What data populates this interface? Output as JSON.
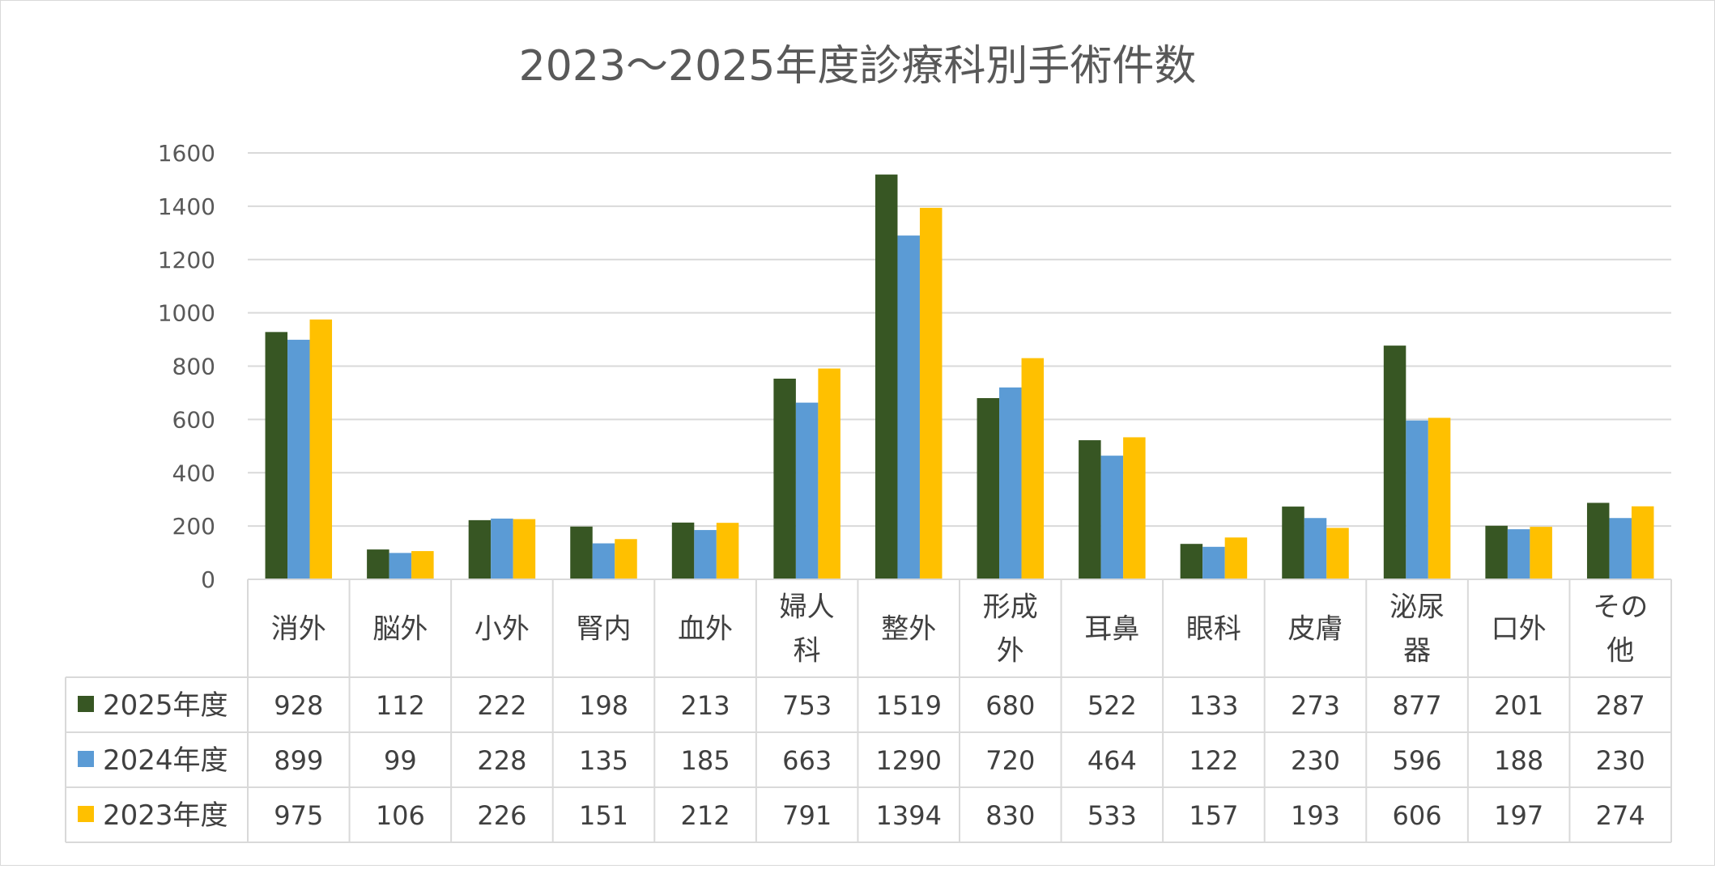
{
  "chart_data": {
    "type": "bar",
    "title": "2023～2025年度診療科別手術件数",
    "xlabel": "",
    "ylabel": "",
    "ylim": [
      0,
      1600
    ],
    "yticks": [
      "0",
      "200",
      "400",
      "600",
      "800",
      "1000",
      "1200",
      "1400",
      "1600"
    ],
    "grid": true,
    "legend": "data-table",
    "categories": [
      "消外",
      "脳外",
      "小外",
      "腎内",
      "血外",
      "婦人科",
      "整外",
      "形成外",
      "耳鼻",
      "眼科",
      "皮膚",
      "泌尿器",
      "口外",
      "その他"
    ],
    "category_lines": [
      [
        "消外"
      ],
      [
        "脳外"
      ],
      [
        "小外"
      ],
      [
        "腎内"
      ],
      [
        "血外"
      ],
      [
        "婦人",
        "科"
      ],
      [
        "整外"
      ],
      [
        "形成",
        "外"
      ],
      [
        "耳鼻"
      ],
      [
        "眼科"
      ],
      [
        "皮膚"
      ],
      [
        "泌尿",
        "器"
      ],
      [
        "口外"
      ],
      [
        "その",
        "他"
      ]
    ],
    "series": [
      {
        "name": "2025年度",
        "color": "#375623",
        "values": [
          928,
          112,
          222,
          198,
          213,
          753,
          1519,
          680,
          522,
          133,
          273,
          877,
          201,
          287
        ]
      },
      {
        "name": "2024年度",
        "color": "#5b9bd5",
        "values": [
          899,
          99,
          228,
          135,
          185,
          663,
          1290,
          720,
          464,
          122,
          230,
          596,
          188,
          230
        ]
      },
      {
        "name": "2023年度",
        "color": "#ffc000",
        "values": [
          975,
          106,
          226,
          151,
          212,
          791,
          1394,
          830,
          533,
          157,
          193,
          606,
          197,
          274
        ]
      }
    ]
  }
}
